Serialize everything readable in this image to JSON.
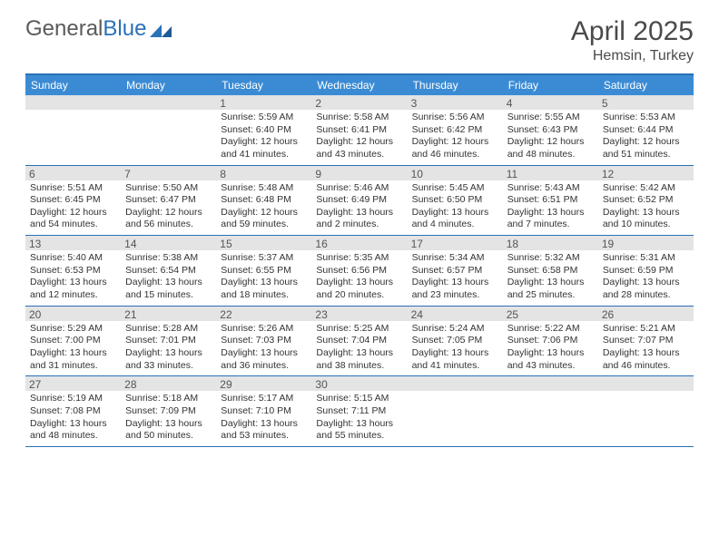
{
  "brand": {
    "part1": "General",
    "part2": "Blue"
  },
  "title": "April 2025",
  "location": "Hemsin, Turkey",
  "colors": {
    "header_bg": "#3b8bd4",
    "border": "#2a71b8",
    "date_bar": "#e4e4e4",
    "text": "#333333"
  },
  "days_of_week": [
    "Sunday",
    "Monday",
    "Tuesday",
    "Wednesday",
    "Thursday",
    "Friday",
    "Saturday"
  ],
  "weeks": [
    [
      null,
      null,
      {
        "d": "1",
        "sr": "5:59 AM",
        "ss": "6:40 PM",
        "dl": "12 hours and 41 minutes."
      },
      {
        "d": "2",
        "sr": "5:58 AM",
        "ss": "6:41 PM",
        "dl": "12 hours and 43 minutes."
      },
      {
        "d": "3",
        "sr": "5:56 AM",
        "ss": "6:42 PM",
        "dl": "12 hours and 46 minutes."
      },
      {
        "d": "4",
        "sr": "5:55 AM",
        "ss": "6:43 PM",
        "dl": "12 hours and 48 minutes."
      },
      {
        "d": "5",
        "sr": "5:53 AM",
        "ss": "6:44 PM",
        "dl": "12 hours and 51 minutes."
      }
    ],
    [
      {
        "d": "6",
        "sr": "5:51 AM",
        "ss": "6:45 PM",
        "dl": "12 hours and 54 minutes."
      },
      {
        "d": "7",
        "sr": "5:50 AM",
        "ss": "6:47 PM",
        "dl": "12 hours and 56 minutes."
      },
      {
        "d": "8",
        "sr": "5:48 AM",
        "ss": "6:48 PM",
        "dl": "12 hours and 59 minutes."
      },
      {
        "d": "9",
        "sr": "5:46 AM",
        "ss": "6:49 PM",
        "dl": "13 hours and 2 minutes."
      },
      {
        "d": "10",
        "sr": "5:45 AM",
        "ss": "6:50 PM",
        "dl": "13 hours and 4 minutes."
      },
      {
        "d": "11",
        "sr": "5:43 AM",
        "ss": "6:51 PM",
        "dl": "13 hours and 7 minutes."
      },
      {
        "d": "12",
        "sr": "5:42 AM",
        "ss": "6:52 PM",
        "dl": "13 hours and 10 minutes."
      }
    ],
    [
      {
        "d": "13",
        "sr": "5:40 AM",
        "ss": "6:53 PM",
        "dl": "13 hours and 12 minutes."
      },
      {
        "d": "14",
        "sr": "5:38 AM",
        "ss": "6:54 PM",
        "dl": "13 hours and 15 minutes."
      },
      {
        "d": "15",
        "sr": "5:37 AM",
        "ss": "6:55 PM",
        "dl": "13 hours and 18 minutes."
      },
      {
        "d": "16",
        "sr": "5:35 AM",
        "ss": "6:56 PM",
        "dl": "13 hours and 20 minutes."
      },
      {
        "d": "17",
        "sr": "5:34 AM",
        "ss": "6:57 PM",
        "dl": "13 hours and 23 minutes."
      },
      {
        "d": "18",
        "sr": "5:32 AM",
        "ss": "6:58 PM",
        "dl": "13 hours and 25 minutes."
      },
      {
        "d": "19",
        "sr": "5:31 AM",
        "ss": "6:59 PM",
        "dl": "13 hours and 28 minutes."
      }
    ],
    [
      {
        "d": "20",
        "sr": "5:29 AM",
        "ss": "7:00 PM",
        "dl": "13 hours and 31 minutes."
      },
      {
        "d": "21",
        "sr": "5:28 AM",
        "ss": "7:01 PM",
        "dl": "13 hours and 33 minutes."
      },
      {
        "d": "22",
        "sr": "5:26 AM",
        "ss": "7:03 PM",
        "dl": "13 hours and 36 minutes."
      },
      {
        "d": "23",
        "sr": "5:25 AM",
        "ss": "7:04 PM",
        "dl": "13 hours and 38 minutes."
      },
      {
        "d": "24",
        "sr": "5:24 AM",
        "ss": "7:05 PM",
        "dl": "13 hours and 41 minutes."
      },
      {
        "d": "25",
        "sr": "5:22 AM",
        "ss": "7:06 PM",
        "dl": "13 hours and 43 minutes."
      },
      {
        "d": "26",
        "sr": "5:21 AM",
        "ss": "7:07 PM",
        "dl": "13 hours and 46 minutes."
      }
    ],
    [
      {
        "d": "27",
        "sr": "5:19 AM",
        "ss": "7:08 PM",
        "dl": "13 hours and 48 minutes."
      },
      {
        "d": "28",
        "sr": "5:18 AM",
        "ss": "7:09 PM",
        "dl": "13 hours and 50 minutes."
      },
      {
        "d": "29",
        "sr": "5:17 AM",
        "ss": "7:10 PM",
        "dl": "13 hours and 53 minutes."
      },
      {
        "d": "30",
        "sr": "5:15 AM",
        "ss": "7:11 PM",
        "dl": "13 hours and 55 minutes."
      },
      null,
      null,
      null
    ]
  ],
  "labels": {
    "sunrise": "Sunrise:",
    "sunset": "Sunset:",
    "daylight": "Daylight:"
  }
}
